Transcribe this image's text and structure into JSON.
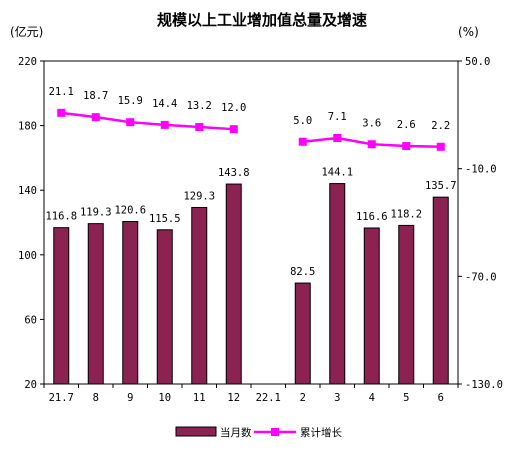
{
  "chart_data": {
    "type": "bar+line",
    "title": "规模以上工业增加值总量及增速",
    "left_unit": "(亿元)",
    "right_unit": "(%)",
    "categories": [
      "21.7",
      "8",
      "9",
      "10",
      "11",
      "12",
      "22.1",
      "2",
      "3",
      "4",
      "5",
      "6"
    ],
    "series": [
      {
        "name": "当月数",
        "kind": "bar",
        "axis": "left",
        "color": "#8B2252",
        "values": [
          116.8,
          119.3,
          120.6,
          115.5,
          129.3,
          143.8,
          null,
          82.5,
          144.1,
          116.6,
          118.2,
          135.7
        ]
      },
      {
        "name": "累计增长",
        "kind": "line",
        "axis": "right",
        "color": "#FF00FF",
        "values": [
          21.1,
          18.7,
          15.9,
          14.4,
          13.2,
          12.0,
          null,
          5.0,
          7.1,
          3.6,
          2.6,
          2.2
        ]
      }
    ],
    "left_axis": {
      "min": 20,
      "max": 220,
      "ticks": [
        20,
        60,
        100,
        140,
        180,
        220
      ]
    },
    "right_axis": {
      "min": -130,
      "max": 50,
      "ticks": [
        "50.0",
        "-10.0",
        "-70.0",
        "-130.0"
      ],
      "tick_values": [
        50,
        -10,
        -70,
        -130
      ]
    },
    "legend_position": "bottom"
  }
}
